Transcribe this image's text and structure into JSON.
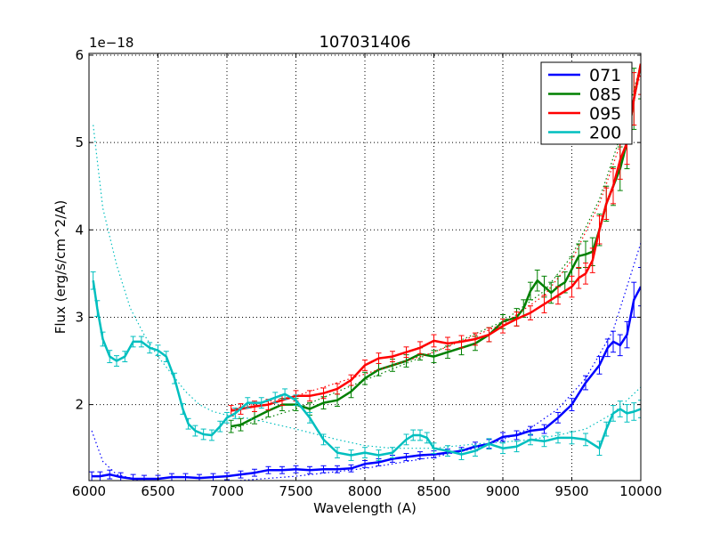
{
  "chart_data": {
    "type": "line",
    "title": "107031406",
    "xlabel": "Wavelength (A)",
    "ylabel": "Flux (erg/s/cm^2/A)",
    "offset_text": "1e−18",
    "xlim": [
      6000,
      10000
    ],
    "ylim": [
      1.13,
      6.02
    ],
    "xticks": [
      6000,
      6500,
      7000,
      7500,
      8000,
      8500,
      9000,
      9500,
      10000
    ],
    "xtick_labels": [
      "6000",
      "6500",
      "7000",
      "7500",
      "8000",
      "8500",
      "9000",
      "9500",
      "10000"
    ],
    "yticks": [
      2,
      3,
      4,
      5,
      6
    ],
    "ytick_labels": [
      "2",
      "3",
      "4",
      "5",
      "6"
    ],
    "grid": true,
    "legend_position": "top-right",
    "series": [
      {
        "name": "071",
        "color": "#0000ff",
        "x": [
          6020,
          6080,
          6150,
          6230,
          6320,
          6400,
          6500,
          6600,
          6700,
          6800,
          6900,
          7000,
          7100,
          7200,
          7300,
          7400,
          7500,
          7600,
          7700,
          7800,
          7900,
          8000,
          8100,
          8200,
          8300,
          8400,
          8500,
          8600,
          8700,
          8800,
          8900,
          9000,
          9100,
          9200,
          9300,
          9400,
          9500,
          9600,
          9700,
          9760,
          9800,
          9850,
          9900,
          9950,
          10000
        ],
        "y": [
          1.18,
          1.18,
          1.2,
          1.17,
          1.15,
          1.15,
          1.15,
          1.17,
          1.17,
          1.16,
          1.17,
          1.18,
          1.2,
          1.22,
          1.25,
          1.25,
          1.26,
          1.25,
          1.26,
          1.26,
          1.27,
          1.32,
          1.34,
          1.38,
          1.4,
          1.42,
          1.43,
          1.45,
          1.47,
          1.52,
          1.55,
          1.63,
          1.65,
          1.7,
          1.72,
          1.85,
          2.0,
          2.25,
          2.45,
          2.65,
          2.72,
          2.68,
          2.8,
          3.2,
          3.35
        ],
        "errors": [
          0.05,
          0.05,
          0.05,
          0.05,
          0.05,
          0.04,
          0.04,
          0.04,
          0.04,
          0.04,
          0.04,
          0.04,
          0.04,
          0.04,
          0.04,
          0.04,
          0.04,
          0.04,
          0.04,
          0.04,
          0.04,
          0.04,
          0.04,
          0.04,
          0.04,
          0.04,
          0.04,
          0.04,
          0.04,
          0.05,
          0.05,
          0.05,
          0.05,
          0.05,
          0.05,
          0.06,
          0.07,
          0.08,
          0.1,
          0.1,
          0.12,
          0.12,
          0.15,
          0.2,
          0.22
        ],
        "fit_x": [
          6020,
          6100,
          6200,
          6400,
          6600,
          6800,
          7000,
          7500,
          8000,
          8500,
          8800,
          9000,
          9200,
          9400,
          9600,
          9800,
          10000
        ],
        "fit_y": [
          1.7,
          1.35,
          1.2,
          1.12,
          1.1,
          1.1,
          1.12,
          1.18,
          1.27,
          1.4,
          1.5,
          1.6,
          1.73,
          1.95,
          2.3,
          2.85,
          3.85
        ]
      },
      {
        "name": "085",
        "color": "#008000",
        "x": [
          7030,
          7100,
          7200,
          7300,
          7400,
          7500,
          7600,
          7700,
          7800,
          7900,
          8000,
          8100,
          8200,
          8300,
          8400,
          8500,
          8600,
          8700,
          8800,
          8900,
          9000,
          9100,
          9150,
          9200,
          9250,
          9300,
          9350,
          9400,
          9450,
          9500,
          9550,
          9600,
          9650,
          9700,
          9750,
          9800,
          9850,
          9900,
          9950,
          10000
        ],
        "y": [
          1.75,
          1.77,
          1.85,
          1.93,
          2.0,
          2.0,
          1.95,
          2.02,
          2.05,
          2.15,
          2.3,
          2.4,
          2.45,
          2.5,
          2.58,
          2.55,
          2.6,
          2.65,
          2.7,
          2.8,
          2.95,
          3.0,
          3.1,
          3.3,
          3.42,
          3.35,
          3.28,
          3.35,
          3.4,
          3.55,
          3.7,
          3.72,
          3.75,
          4.0,
          4.3,
          4.5,
          4.7,
          5.0,
          5.5,
          5.9
        ],
        "errors": [
          0.07,
          0.07,
          0.07,
          0.07,
          0.07,
          0.07,
          0.07,
          0.07,
          0.07,
          0.07,
          0.07,
          0.07,
          0.07,
          0.07,
          0.07,
          0.07,
          0.07,
          0.08,
          0.08,
          0.08,
          0.08,
          0.1,
          0.1,
          0.1,
          0.12,
          0.12,
          0.12,
          0.12,
          0.12,
          0.14,
          0.14,
          0.15,
          0.16,
          0.18,
          0.2,
          0.22,
          0.25,
          0.3,
          0.35,
          0.4
        ],
        "fit_x": [
          7030,
          7500,
          8000,
          8500,
          9000,
          9300,
          9500,
          9700,
          9900,
          10000
        ],
        "fit_y": [
          1.72,
          1.95,
          2.28,
          2.6,
          2.95,
          3.3,
          3.7,
          4.35,
          5.3,
          5.9
        ]
      },
      {
        "name": "095",
        "color": "#ff0000",
        "x": [
          7030,
          7100,
          7200,
          7300,
          7400,
          7500,
          7600,
          7700,
          7800,
          7900,
          8000,
          8100,
          8200,
          8300,
          8400,
          8500,
          8600,
          8700,
          8800,
          8900,
          9000,
          9100,
          9200,
          9300,
          9400,
          9500,
          9550,
          9600,
          9650,
          9700,
          9750,
          9800,
          9850,
          9900,
          9950,
          10000
        ],
        "y": [
          1.93,
          1.95,
          1.98,
          2.0,
          2.05,
          2.1,
          2.1,
          2.13,
          2.18,
          2.28,
          2.45,
          2.53,
          2.55,
          2.6,
          2.65,
          2.73,
          2.7,
          2.72,
          2.75,
          2.8,
          2.9,
          2.98,
          3.05,
          3.15,
          3.25,
          3.35,
          3.45,
          3.5,
          3.65,
          4.0,
          4.3,
          4.5,
          4.8,
          5.0,
          5.5,
          5.9
        ],
        "errors": [
          0.06,
          0.06,
          0.06,
          0.06,
          0.06,
          0.06,
          0.06,
          0.06,
          0.06,
          0.06,
          0.06,
          0.06,
          0.06,
          0.06,
          0.07,
          0.07,
          0.07,
          0.07,
          0.07,
          0.08,
          0.08,
          0.08,
          0.08,
          0.1,
          0.1,
          0.12,
          0.12,
          0.12,
          0.14,
          0.16,
          0.18,
          0.2,
          0.22,
          0.25,
          0.3,
          0.35
        ],
        "fit_x": [
          7030,
          7500,
          8000,
          8500,
          9000,
          9300,
          9500,
          9700,
          9900,
          10000
        ],
        "fit_y": [
          1.95,
          2.1,
          2.35,
          2.6,
          2.92,
          3.25,
          3.65,
          4.3,
          5.2,
          5.8
        ]
      },
      {
        "name": "200",
        "color": "#00bfbf",
        "x": [
          6030,
          6060,
          6100,
          6150,
          6200,
          6260,
          6320,
          6380,
          6440,
          6500,
          6560,
          6620,
          6680,
          6720,
          6770,
          6830,
          6890,
          6950,
          7000,
          7060,
          7150,
          7250,
          7350,
          7420,
          7500,
          7600,
          7700,
          7800,
          7900,
          8000,
          8100,
          8200,
          8300,
          8350,
          8400,
          8450,
          8500,
          8600,
          8700,
          8800,
          8900,
          9000,
          9100,
          9200,
          9300,
          9400,
          9500,
          9600,
          9700,
          9750,
          9800,
          9850,
          9900,
          9950,
          10000
        ],
        "y": [
          3.42,
          3.1,
          2.75,
          2.55,
          2.5,
          2.55,
          2.72,
          2.72,
          2.65,
          2.62,
          2.55,
          2.3,
          1.95,
          1.78,
          1.7,
          1.66,
          1.65,
          1.75,
          1.85,
          1.9,
          2.02,
          2.02,
          2.08,
          2.12,
          2.05,
          1.85,
          1.6,
          1.45,
          1.42,
          1.45,
          1.42,
          1.45,
          1.6,
          1.65,
          1.65,
          1.62,
          1.5,
          1.47,
          1.43,
          1.47,
          1.55,
          1.5,
          1.52,
          1.6,
          1.58,
          1.62,
          1.62,
          1.6,
          1.5,
          1.72,
          1.9,
          1.95,
          1.9,
          1.92,
          1.95
        ],
        "errors": [
          0.1,
          0.09,
          0.08,
          0.07,
          0.06,
          0.06,
          0.06,
          0.06,
          0.06,
          0.06,
          0.06,
          0.06,
          0.06,
          0.06,
          0.06,
          0.06,
          0.06,
          0.06,
          0.06,
          0.06,
          0.06,
          0.06,
          0.06,
          0.06,
          0.06,
          0.06,
          0.06,
          0.06,
          0.06,
          0.06,
          0.06,
          0.06,
          0.06,
          0.06,
          0.06,
          0.06,
          0.06,
          0.06,
          0.06,
          0.06,
          0.06,
          0.06,
          0.06,
          0.06,
          0.06,
          0.06,
          0.07,
          0.07,
          0.08,
          0.08,
          0.09,
          0.09,
          0.1,
          0.1,
          0.1
        ],
        "fit_x": [
          6030,
          6100,
          6200,
          6300,
          6400,
          6500,
          6600,
          6700,
          6800,
          6900,
          7000,
          7200,
          7500,
          7800,
          8000,
          8200,
          8500,
          8800,
          9000,
          9200,
          9400,
          9600,
          9800,
          10000
        ],
        "fit_y": [
          5.2,
          4.25,
          3.6,
          3.1,
          2.8,
          2.55,
          2.35,
          2.15,
          2.0,
          1.92,
          1.88,
          1.83,
          1.72,
          1.6,
          1.53,
          1.5,
          1.5,
          1.55,
          1.57,
          1.6,
          1.65,
          1.72,
          1.9,
          2.2
        ]
      }
    ]
  }
}
